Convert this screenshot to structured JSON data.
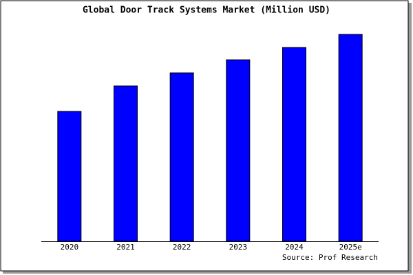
{
  "chart_data": {
    "type": "bar",
    "title": "Global Door Track Systems Market (Million USD)",
    "categories": [
      "2020",
      "2021",
      "2022",
      "2023",
      "2024",
      "2025e"
    ],
    "values": [
      189,
      226,
      245,
      264,
      282,
      301
    ],
    "color": "#0000ff",
    "ylim": [
      0,
      301
    ],
    "source": "Source: Prof Research"
  }
}
